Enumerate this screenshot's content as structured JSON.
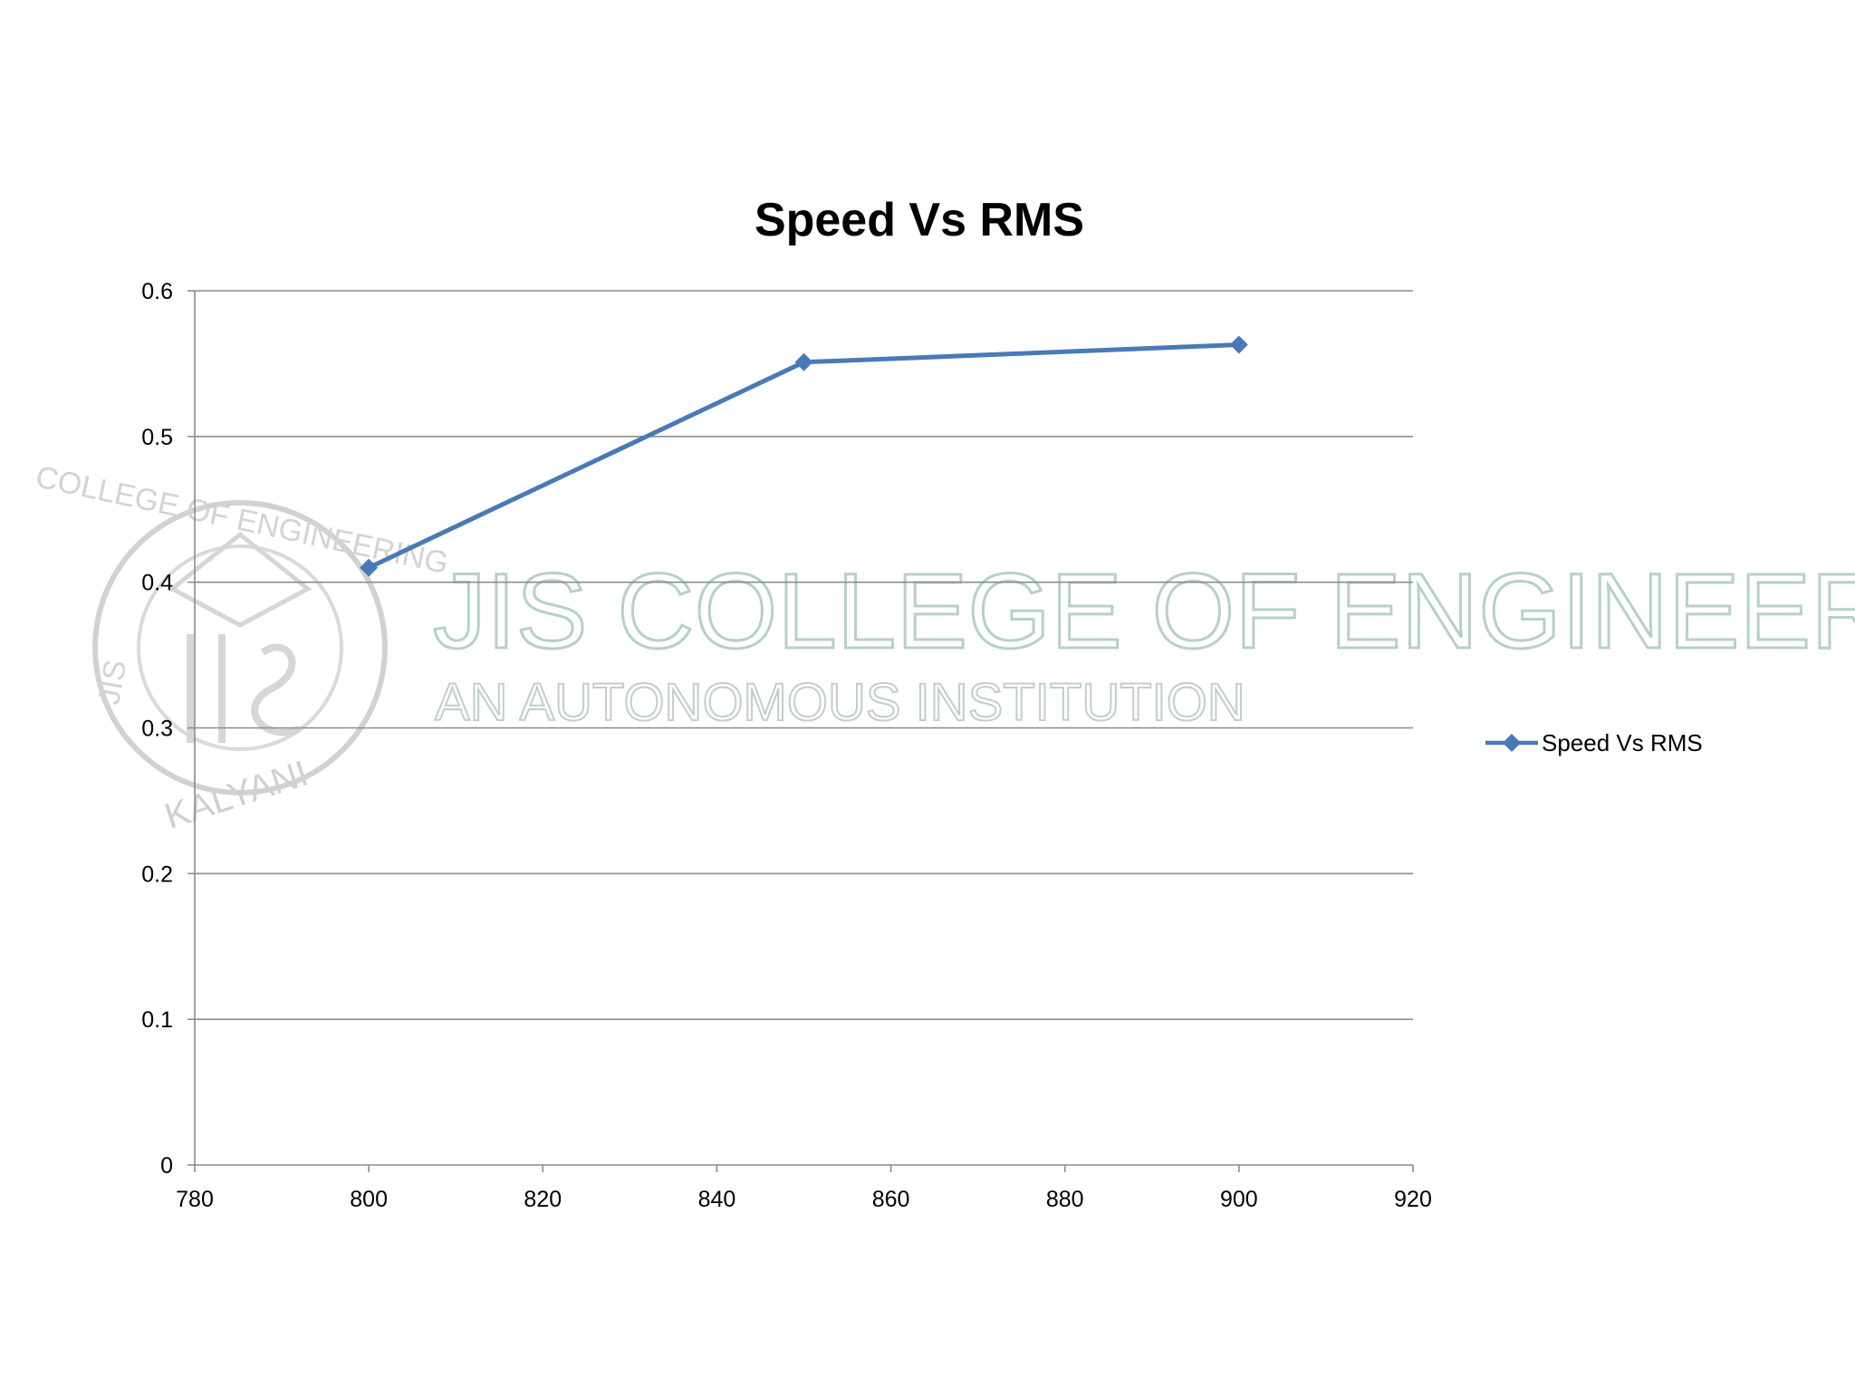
{
  "watermark": {
    "institution": "JIS COLLEGE OF ENGINEERING",
    "subtitle": "AN AUTONOMOUS INSTITUTION",
    "seal_top": "COLLEGE OF ENGINEERING",
    "seal_side": "JIS",
    "seal_bottom": "KALYANI"
  },
  "chart_data": {
    "type": "scatter",
    "title": "Speed Vs RMS",
    "xlabel": "",
    "ylabel": "",
    "xlim": [
      780,
      920
    ],
    "ylim": [
      0,
      0.6
    ],
    "x_ticks": [
      "780",
      "800",
      "820",
      "840",
      "860",
      "880",
      "900",
      "920"
    ],
    "y_ticks": [
      "0",
      "0.1",
      "0.2",
      "0.3",
      "0.4",
      "0.5",
      "0.6"
    ],
    "grid": "horizontal",
    "legend": "right",
    "series": [
      {
        "name": "Speed Vs RMS",
        "color": "#4a7ab5",
        "marker": "diamond",
        "line": true,
        "x": [
          800,
          850,
          900
        ],
        "y": [
          0.41,
          0.551,
          0.563
        ]
      }
    ]
  }
}
